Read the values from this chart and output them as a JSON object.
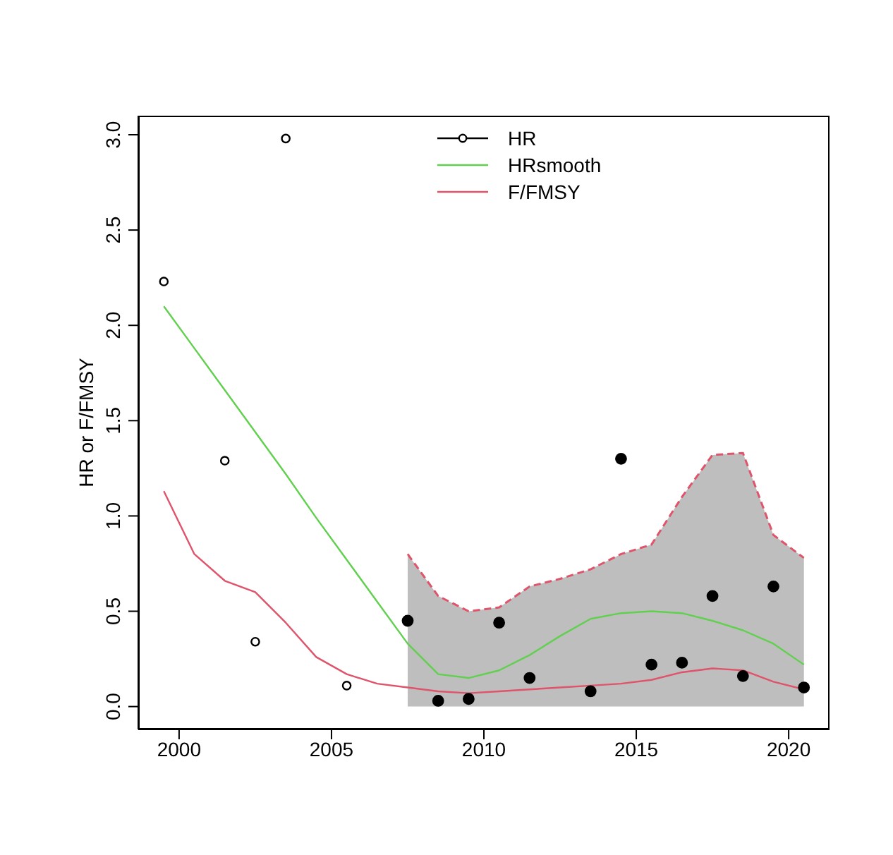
{
  "chart_data": {
    "type": "scatter",
    "ylabel": "HR or F/FMSY",
    "xlim": [
      1998.66,
      2021.34
    ],
    "xticks": [
      2000,
      2005,
      2010,
      2015,
      2020
    ],
    "ylim": [
      -0.12,
      3.1
    ],
    "yticks": [
      {
        "value": 0,
        "label": "0.0"
      },
      {
        "value": 0.5,
        "label": "0.5"
      },
      {
        "value": 1,
        "label": "1.0"
      },
      {
        "value": 1.5,
        "label": "1.5"
      },
      {
        "value": 2,
        "label": "2.0"
      },
      {
        "value": 2.5,
        "label": "2.5"
      },
      {
        "value": 3,
        "label": "3.0"
      }
    ],
    "grid": false,
    "legend": "top",
    "series": [
      {
        "type": "area",
        "color": "#df536b",
        "line_style": "dashed",
        "x": [
          2007.5,
          2008.5,
          2009.5,
          2010.5,
          2011.5,
          2012.5,
          2013.5,
          2014.5,
          2015.5,
          2016.5,
          2017.5,
          2018.5,
          2019.5,
          2020.5
        ],
        "values": [
          0.8,
          0.58,
          0.5,
          0.52,
          0.63,
          0.67,
          0.72,
          0.8,
          0.85,
          1.1,
          1.32,
          1.33,
          0.9,
          0.78
        ]
      },
      {
        "name": "HR",
        "color": "#000000",
        "marker": "circle",
        "x": [
          1999.5,
          2001.5,
          2002.5,
          2003.5,
          2005.5
        ],
        "values": [
          2.23,
          1.29,
          0.34,
          2.98,
          0.11
        ]
      },
      {
        "color": "#000000",
        "marker": "circle",
        "x": [
          2007.5,
          2008.5,
          2009.5,
          2010.5,
          2011.5,
          2013.5,
          2014.5,
          2015.5,
          2016.5,
          2017.5,
          2018.5,
          2019.5,
          2020.5
        ],
        "values": [
          0.45,
          0.03,
          0.04,
          0.44,
          0.15,
          0.08,
          1.3,
          0.22,
          0.23,
          0.58,
          0.16,
          0.63,
          0.1
        ]
      },
      {
        "name": "HRsmooth",
        "type": "line",
        "color": "#61d04f",
        "x": [
          1999.5,
          2000.5,
          2001.5,
          2002.5,
          2003.5,
          2004.5,
          2005.5,
          2006.5,
          2007.5,
          2008.5,
          2009.5,
          2010.5,
          2011.5,
          2012.5,
          2013.5,
          2014.5,
          2015.5,
          2016.5,
          2017.5,
          2018.5,
          2019.5,
          2020.5
        ],
        "values": [
          2.1,
          1.88,
          1.66,
          1.44,
          1.22,
          0.99,
          0.77,
          0.55,
          0.33,
          0.17,
          0.15,
          0.19,
          0.27,
          0.37,
          0.46,
          0.49,
          0.5,
          0.49,
          0.45,
          0.4,
          0.33,
          0.22
        ]
      },
      {
        "name": "F/FMSY",
        "type": "line",
        "color": "#df536b",
        "x": [
          1999.5,
          2000.5,
          2001.5,
          2002.5,
          2003.5,
          2004.5,
          2005.5,
          2006.5,
          2007.5,
          2008.5,
          2009.5,
          2010.5,
          2011.5,
          2012.5,
          2013.5,
          2014.5,
          2015.5,
          2016.5,
          2017.5,
          2018.5,
          2019.5,
          2020.5
        ],
        "values": [
          1.13,
          0.8,
          0.66,
          0.6,
          0.44,
          0.26,
          0.17,
          0.12,
          0.1,
          0.08,
          0.07,
          0.08,
          0.09,
          0.1,
          0.11,
          0.12,
          0.14,
          0.18,
          0.2,
          0.19,
          0.13,
          0.09
        ]
      }
    ]
  }
}
